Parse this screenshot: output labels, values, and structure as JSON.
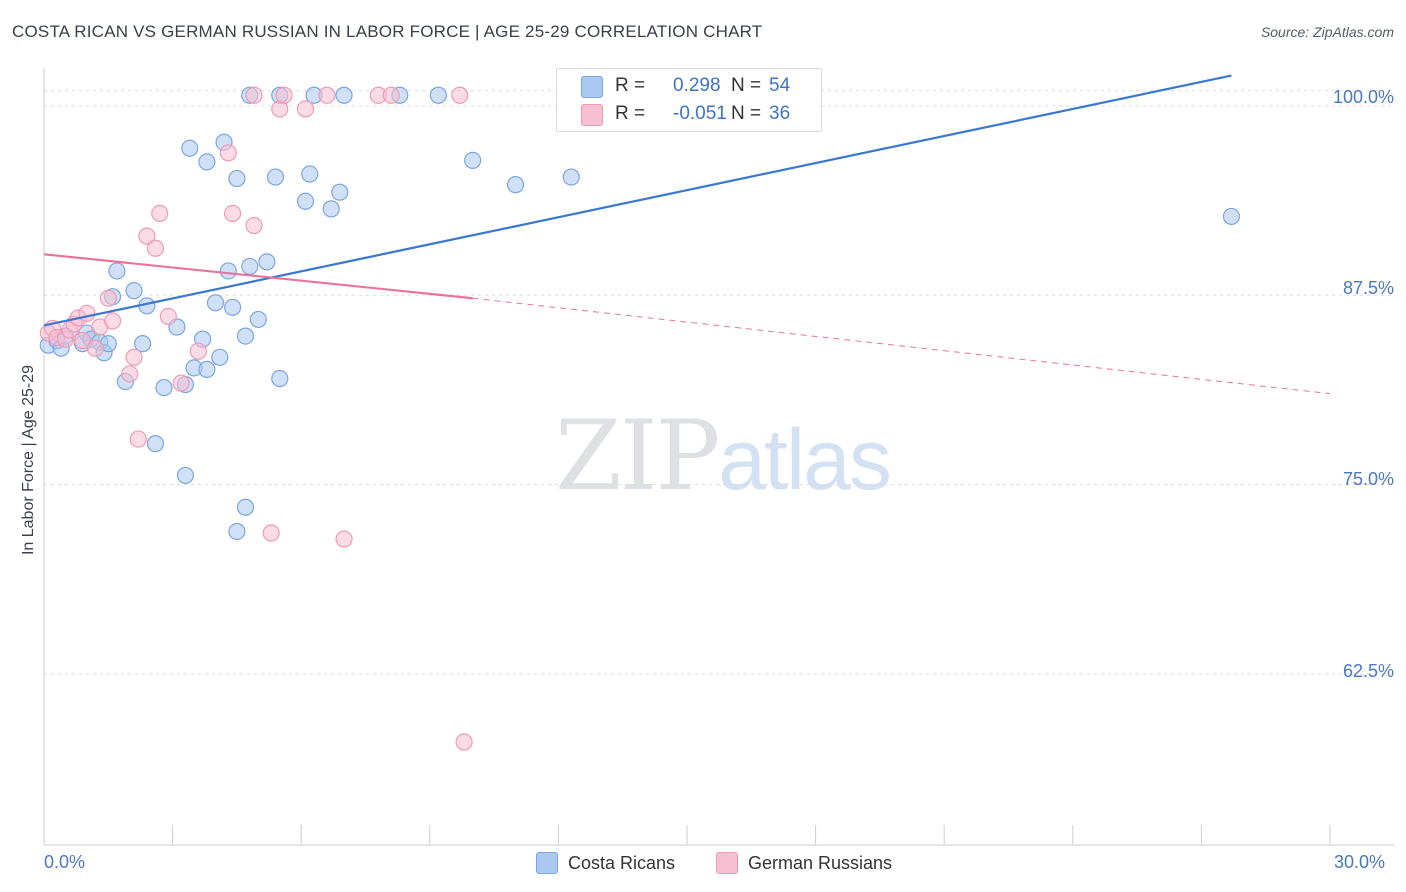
{
  "header": {
    "title": "COSTA RICAN VS GERMAN RUSSIAN IN LABOR FORCE | AGE 25-29 CORRELATION CHART",
    "source": "Source: ZipAtlas.com"
  },
  "watermark": {
    "zip": "ZIP",
    "atlas": "atlas"
  },
  "stats": {
    "series1": {
      "r_label": "R =",
      "r_value": "0.298",
      "n_label": "N =",
      "n_value": "54"
    },
    "series2": {
      "r_label": "R =",
      "r_value": "-0.051",
      "n_label": "N =",
      "n_value": "36"
    }
  },
  "legend": {
    "series1": "Costa Ricans",
    "series2": "German Russians"
  },
  "colors": {
    "blue_fill": "#aac8f0",
    "blue_stroke": "#7ba6de",
    "blue_line": "#3a78d0",
    "pink_fill": "#f7c0d2",
    "pink_stroke": "#ee9ab7",
    "pink_line": "#e8739c",
    "grid": "#d9dce2",
    "axis_text": "#4a78c4"
  },
  "chart_data": {
    "type": "scatter",
    "title": "COSTA RICAN VS GERMAN RUSSIAN IN LABOR FORCE | AGE 25-29 CORRELATION CHART",
    "xlabel": "",
    "ylabel": "In Labor Force | Age 25-29",
    "xlim": [
      0,
      30
    ],
    "ylim": [
      51.2,
      102.5
    ],
    "x_tick_labels": [
      "0.0%",
      "30.0%"
    ],
    "y_ticks": [
      62.5,
      75.0,
      87.5,
      100.0
    ],
    "y_tick_labels": [
      "62.5%",
      "75.0%",
      "87.5%",
      "100.0%"
    ],
    "gridlines": "horizontal dashed",
    "legend_position": "bottom-center",
    "series": [
      {
        "name": "Costa Ricans",
        "r": 0.298,
        "n": 54,
        "trend": {
          "x": [
            0.0,
            27.7
          ],
          "y": [
            85.5,
            102.0
          ],
          "style": "solid"
        },
        "points": [
          [
            0.1,
            84.2
          ],
          [
            0.3,
            84.5
          ],
          [
            0.4,
            84.0
          ],
          [
            0.5,
            84.8
          ],
          [
            0.9,
            84.3
          ],
          [
            1.0,
            85.0
          ],
          [
            1.1,
            84.6
          ],
          [
            1.3,
            84.4
          ],
          [
            1.4,
            83.7
          ],
          [
            1.5,
            84.3
          ],
          [
            2.1,
            87.8
          ],
          [
            2.4,
            86.8
          ],
          [
            1.7,
            89.1
          ],
          [
            1.6,
            87.4
          ],
          [
            2.3,
            84.3
          ],
          [
            1.9,
            81.8
          ],
          [
            2.8,
            81.4
          ],
          [
            3.3,
            81.6
          ],
          [
            3.5,
            82.7
          ],
          [
            3.1,
            85.4
          ],
          [
            3.8,
            82.6
          ],
          [
            4.1,
            83.4
          ],
          [
            4.4,
            86.7
          ],
          [
            4.7,
            84.8
          ],
          [
            5.5,
            82.0
          ],
          [
            4.3,
            89.1
          ],
          [
            4.8,
            89.4
          ],
          [
            5.2,
            89.7
          ],
          [
            5.0,
            85.9
          ],
          [
            3.7,
            84.6
          ],
          [
            4.0,
            87.0
          ],
          [
            2.6,
            77.7
          ],
          [
            3.3,
            75.6
          ],
          [
            4.7,
            73.5
          ],
          [
            4.5,
            71.9
          ],
          [
            4.5,
            95.2
          ],
          [
            3.8,
            96.3
          ],
          [
            3.4,
            97.2
          ],
          [
            4.2,
            97.6
          ],
          [
            4.8,
            100.7
          ],
          [
            5.5,
            100.7
          ],
          [
            6.3,
            100.7
          ],
          [
            7.0,
            100.7
          ],
          [
            8.3,
            100.7
          ],
          [
            9.2,
            100.7
          ],
          [
            5.4,
            95.3
          ],
          [
            6.1,
            93.7
          ],
          [
            6.2,
            95.5
          ],
          [
            6.7,
            93.2
          ],
          [
            6.9,
            94.3
          ],
          [
            10.0,
            96.4
          ],
          [
            11.0,
            94.8
          ],
          [
            12.3,
            95.3
          ],
          [
            27.7,
            92.7
          ]
        ]
      },
      {
        "name": "German Russians",
        "r": -0.051,
        "n": 36,
        "trend": {
          "x": [
            0.0,
            10.0,
            30.0
          ],
          "y": [
            90.2,
            87.3,
            81.0
          ],
          "style": "solid to 10.0, dashed after"
        },
        "points": [
          [
            0.1,
            85.0
          ],
          [
            0.2,
            85.3
          ],
          [
            0.3,
            84.7
          ],
          [
            0.5,
            84.6
          ],
          [
            0.6,
            85.2
          ],
          [
            0.7,
            85.6
          ],
          [
            0.8,
            86.0
          ],
          [
            0.9,
            84.5
          ],
          [
            1.0,
            86.3
          ],
          [
            1.2,
            84.0
          ],
          [
            1.3,
            85.4
          ],
          [
            1.6,
            85.8
          ],
          [
            1.5,
            87.3
          ],
          [
            2.0,
            82.3
          ],
          [
            2.1,
            83.4
          ],
          [
            2.2,
            78.0
          ],
          [
            2.4,
            91.4
          ],
          [
            2.7,
            92.9
          ],
          [
            2.6,
            90.6
          ],
          [
            2.9,
            86.1
          ],
          [
            3.2,
            81.7
          ],
          [
            3.6,
            83.8
          ],
          [
            4.3,
            96.9
          ],
          [
            4.4,
            92.9
          ],
          [
            4.9,
            92.1
          ],
          [
            5.3,
            71.8
          ],
          [
            5.5,
            99.8
          ],
          [
            6.1,
            99.8
          ],
          [
            6.6,
            100.7
          ],
          [
            4.9,
            100.7
          ],
          [
            5.6,
            100.7
          ],
          [
            7.8,
            100.7
          ],
          [
            8.1,
            100.7
          ],
          [
            9.7,
            100.7
          ],
          [
            7.0,
            71.4
          ],
          [
            9.8,
            58.0
          ]
        ]
      }
    ]
  }
}
